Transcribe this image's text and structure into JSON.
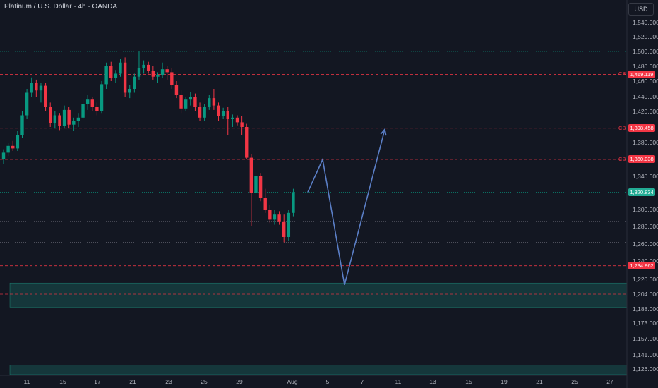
{
  "header": {
    "title": "Platinum / U.S. Dollar · 4h · OANDA"
  },
  "price_axis": {
    "currency_button": "USD",
    "ticks": [
      {
        "label": "1,540.000",
        "value": 1540
      },
      {
        "label": "1,520.000",
        "value": 1520
      },
      {
        "label": "1,500.000",
        "value": 1500
      },
      {
        "label": "1,480.000",
        "value": 1480
      },
      {
        "label": "1,460.000",
        "value": 1460
      },
      {
        "label": "1,440.000",
        "value": 1440
      },
      {
        "label": "1,420.000",
        "value": 1420
      },
      {
        "label": "1,380.000",
        "value": 1380
      },
      {
        "label": "1,340.000",
        "value": 1340
      },
      {
        "label": "1,300.000",
        "value": 1300
      },
      {
        "label": "1,280.000",
        "value": 1280
      },
      {
        "label": "1,260.000",
        "value": 1260
      },
      {
        "label": "1,240.000",
        "value": 1240
      },
      {
        "label": "1,220.000",
        "value": 1220
      },
      {
        "label": "1,204.000",
        "value": 1204
      },
      {
        "label": "1,188.000",
        "value": 1188
      },
      {
        "label": "1,173.000",
        "value": 1173
      },
      {
        "label": "1,157.000",
        "value": 1157
      },
      {
        "label": "1,141.000",
        "value": 1141
      },
      {
        "label": "1,126.000",
        "value": 1126
      }
    ],
    "tags": [
      {
        "label": "1,469.119",
        "value": 1469.119,
        "color": "#f23645",
        "cb": "CB"
      },
      {
        "label": "1,398.458",
        "value": 1398.458,
        "color": "#f23645",
        "cb": "CB"
      },
      {
        "label": "1,360.038",
        "value": 1360.038,
        "color": "#f23645",
        "cb": "CB"
      },
      {
        "label": "1,320.834",
        "value": 1320.834,
        "color": "#22ab94",
        "cb": ""
      },
      {
        "label": "1,234.862",
        "value": 1234.862,
        "color": "#f23645",
        "cb": ""
      }
    ]
  },
  "time_axis": {
    "ticks": [
      "11",
      "15",
      "17",
      "21",
      "23",
      "25",
      "29",
      "Aug",
      "5",
      "7",
      "11",
      "13",
      "15",
      "19",
      "21",
      "25",
      "27"
    ]
  },
  "chart_data": {
    "type": "candlestick",
    "symbol": "Platinum / U.S. Dollar",
    "timeframe": "4h",
    "source": "OANDA",
    "currency": "USD",
    "colors": {
      "up": "#089981",
      "down": "#f23645",
      "projection": "#5b7fc7",
      "zone": "#22ab94"
    },
    "horizontal_levels": [
      {
        "value": 1500,
        "style": "dotted",
        "color": "#089981"
      },
      {
        "value": 1469.119,
        "style": "dashed",
        "color": "#f23645"
      },
      {
        "value": 1398.458,
        "style": "dashed",
        "color": "#f23645"
      },
      {
        "value": 1360.038,
        "style": "dashed",
        "color": "#f23645"
      },
      {
        "value": 1320.834,
        "style": "dotted",
        "color": "#089981"
      },
      {
        "value": 1286,
        "style": "dotted",
        "color": "#6a6d78"
      },
      {
        "value": 1262,
        "style": "dotted",
        "color": "#6a6d78"
      },
      {
        "value": 1234.862,
        "style": "dashed",
        "color": "#f23645"
      },
      {
        "value": 1204,
        "style": "dashed",
        "color": "#f23645"
      }
    ],
    "zones": [
      {
        "top": 1216,
        "bottom": 1190
      },
      {
        "top": 1130,
        "bottom": 1120
      }
    ],
    "projection_path": [
      {
        "date": "Aug 2",
        "price": 1321
      },
      {
        "date": "Aug 4",
        "price": 1360
      },
      {
        "date": "Aug 6",
        "price": 1214
      },
      {
        "date": "Aug 10",
        "price": 1397
      }
    ],
    "candles": [
      [
        1360,
        1372,
        1355,
        1368
      ],
      [
        1368,
        1380,
        1364,
        1376
      ],
      [
        1376,
        1382,
        1370,
        1373
      ],
      [
        1373,
        1395,
        1370,
        1390
      ],
      [
        1390,
        1420,
        1386,
        1415
      ],
      [
        1415,
        1450,
        1410,
        1445
      ],
      [
        1445,
        1465,
        1440,
        1458
      ],
      [
        1458,
        1462,
        1440,
        1448
      ],
      [
        1448,
        1458,
        1432,
        1454
      ],
      [
        1454,
        1458,
        1420,
        1426
      ],
      [
        1426,
        1432,
        1400,
        1405
      ],
      [
        1405,
        1420,
        1398,
        1415
      ],
      [
        1415,
        1418,
        1396,
        1401
      ],
      [
        1401,
        1428,
        1398,
        1422
      ],
      [
        1422,
        1426,
        1398,
        1403
      ],
      [
        1403,
        1412,
        1395,
        1408
      ],
      [
        1408,
        1418,
        1400,
        1412
      ],
      [
        1412,
        1436,
        1410,
        1430
      ],
      [
        1430,
        1442,
        1422,
        1436
      ],
      [
        1436,
        1440,
        1420,
        1426
      ],
      [
        1426,
        1432,
        1415,
        1420
      ],
      [
        1420,
        1460,
        1418,
        1456
      ],
      [
        1456,
        1485,
        1450,
        1480
      ],
      [
        1480,
        1486,
        1460,
        1464
      ],
      [
        1464,
        1475,
        1458,
        1470
      ],
      [
        1470,
        1490,
        1466,
        1485
      ],
      [
        1485,
        1492,
        1440,
        1445
      ],
      [
        1445,
        1455,
        1438,
        1450
      ],
      [
        1450,
        1470,
        1445,
        1466
      ],
      [
        1466,
        1500,
        1462,
        1478
      ],
      [
        1478,
        1488,
        1470,
        1482
      ],
      [
        1482,
        1486,
        1470,
        1474
      ],
      [
        1474,
        1480,
        1462,
        1466
      ],
      [
        1466,
        1472,
        1458,
        1468
      ],
      [
        1468,
        1485,
        1464,
        1476
      ],
      [
        1476,
        1480,
        1462,
        1472
      ],
      [
        1472,
        1478,
        1450,
        1455
      ],
      [
        1455,
        1460,
        1438,
        1442
      ],
      [
        1442,
        1448,
        1418,
        1424
      ],
      [
        1424,
        1440,
        1420,
        1436
      ],
      [
        1436,
        1446,
        1428,
        1440
      ],
      [
        1440,
        1444,
        1420,
        1426
      ],
      [
        1426,
        1432,
        1408,
        1412
      ],
      [
        1412,
        1430,
        1408,
        1426
      ],
      [
        1426,
        1442,
        1422,
        1438
      ],
      [
        1438,
        1450,
        1422,
        1428
      ],
      [
        1428,
        1432,
        1408,
        1414
      ],
      [
        1414,
        1425,
        1410,
        1420
      ],
      [
        1420,
        1426,
        1390,
        1410
      ],
      [
        1410,
        1416,
        1400,
        1412
      ],
      [
        1412,
        1415,
        1402,
        1406
      ],
      [
        1406,
        1414,
        1390,
        1400
      ],
      [
        1400,
        1404,
        1360,
        1362
      ],
      [
        1362,
        1366,
        1280,
        1320
      ],
      [
        1320,
        1345,
        1310,
        1340
      ],
      [
        1340,
        1344,
        1310,
        1314
      ],
      [
        1314,
        1325,
        1296,
        1300
      ],
      [
        1300,
        1306,
        1284,
        1288
      ],
      [
        1288,
        1300,
        1282,
        1294
      ],
      [
        1294,
        1298,
        1282,
        1286
      ],
      [
        1286,
        1294,
        1262,
        1268
      ],
      [
        1268,
        1300,
        1264,
        1296
      ],
      [
        1296,
        1325,
        1292,
        1320
      ]
    ]
  }
}
